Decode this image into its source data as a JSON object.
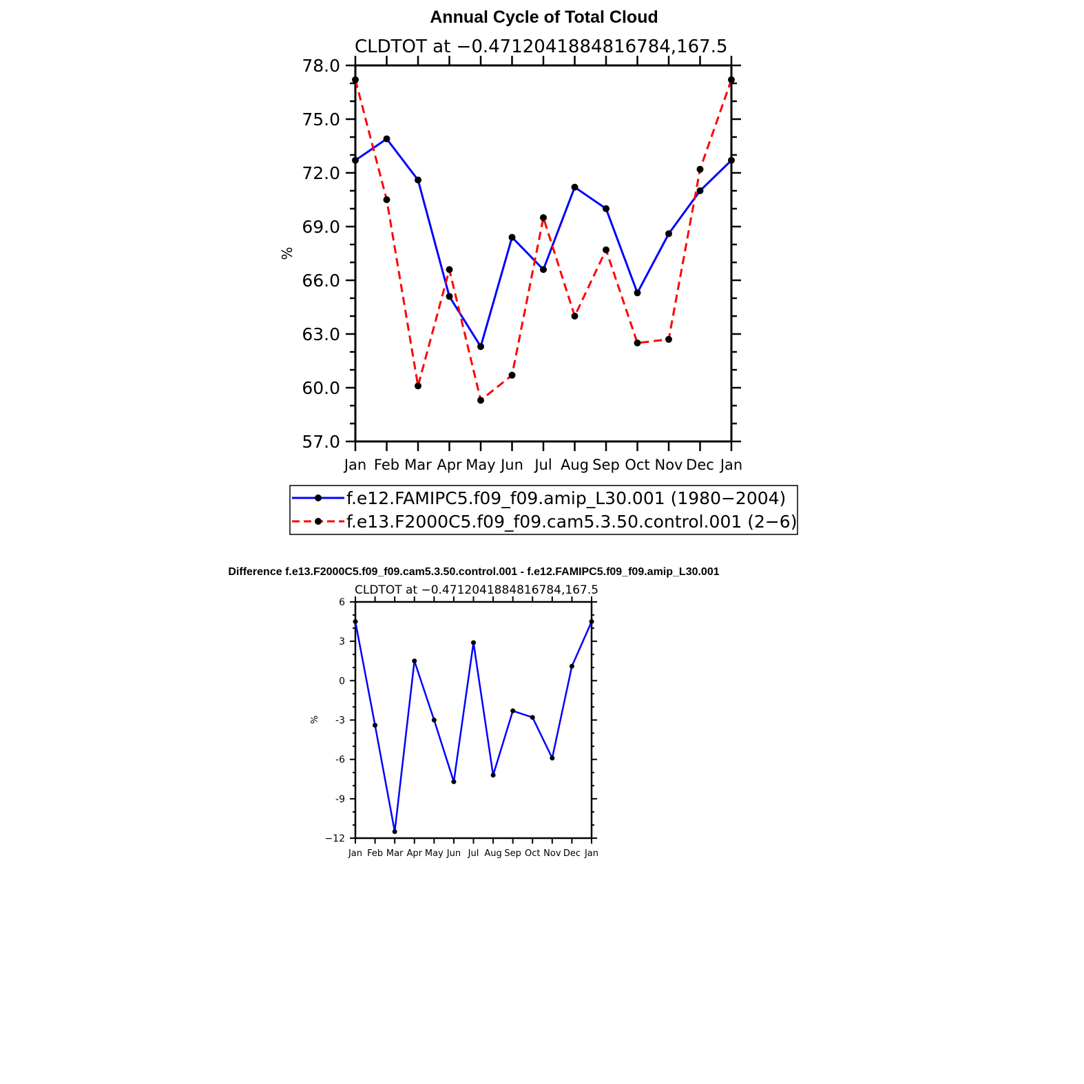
{
  "chart_data": [
    {
      "type": "line",
      "title": "Annual Cycle of Total Cloud",
      "subtitle": "CLDTOT at −0.4712041884816784,167.5",
      "ylabel": "%",
      "xlabel": "",
      "categories": [
        "Jan",
        "Feb",
        "Mar",
        "Apr",
        "May",
        "Jun",
        "Jul",
        "Aug",
        "Sep",
        "Oct",
        "Nov",
        "Dec",
        "Jan"
      ],
      "ylim": [
        57.0,
        78.0
      ],
      "yticks": [
        "57.0",
        "60.0",
        "63.0",
        "66.0",
        "69.0",
        "72.0",
        "75.0",
        "78.0"
      ],
      "grid": false,
      "legend_position": "bottom",
      "series": [
        {
          "name": "f.e12.FAMIPC5.f09_f09.amip_L30.001 (1980−2004)",
          "color": "#0000ff",
          "style": "solid",
          "values": [
            72.7,
            73.9,
            71.6,
            65.1,
            62.3,
            68.4,
            66.6,
            71.2,
            70.0,
            65.3,
            68.6,
            71.0,
            72.7
          ]
        },
        {
          "name": "f.e13.F2000C5.f09_f09.cam5.3.50.control.001 (2−6)",
          "color": "#ff0000",
          "style": "dashed",
          "values": [
            77.2,
            70.5,
            60.1,
            66.6,
            59.3,
            60.7,
            69.5,
            64.0,
            67.7,
            62.5,
            62.7,
            72.2,
            77.2
          ]
        }
      ]
    },
    {
      "type": "line",
      "title": "Difference f.e13.F2000C5.f09_f09.cam5.3.50.control.001 - f.e12.FAMIPC5.f09_f09.amip_L30.001",
      "subtitle": "CLDTOT at −0.4712041884816784,167.5",
      "ylabel": "%",
      "xlabel": "",
      "categories": [
        "Jan",
        "Feb",
        "Mar",
        "Apr",
        "May",
        "Jun",
        "Jul",
        "Aug",
        "Sep",
        "Oct",
        "Nov",
        "Dec",
        "Jan"
      ],
      "ylim": [
        -12,
        6
      ],
      "yticks": [
        "−12",
        "-9",
        "-6",
        "-3",
        "0",
        "3",
        "6"
      ],
      "grid": false,
      "series": [
        {
          "color": "#0000ff",
          "style": "solid",
          "values": [
            4.5,
            -3.4,
            -11.5,
            1.5,
            -3.0,
            -7.7,
            2.9,
            -7.2,
            -2.3,
            -2.8,
            -5.9,
            1.1,
            4.5
          ]
        }
      ]
    }
  ]
}
